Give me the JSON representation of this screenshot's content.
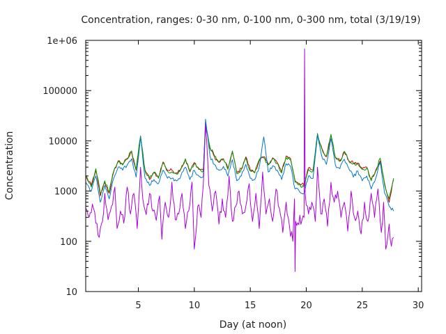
{
  "chart_data": {
    "type": "line",
    "title": "Concentration, ranges: 0-30 nm, 0-100 nm, 0-300 nm, total (3/19/19)",
    "xlabel": "Day (at noon)",
    "ylabel": "Concentration",
    "xlim": [
      0.3,
      30.3
    ],
    "ylim": [
      10,
      1000000
    ],
    "yscale": "log",
    "grid": false,
    "legend": "none",
    "x_ticks": [
      {
        "value": 5,
        "label": "5"
      },
      {
        "value": 10,
        "label": "10"
      },
      {
        "value": 15,
        "label": "15"
      },
      {
        "value": 20,
        "label": "20"
      },
      {
        "value": 25,
        "label": "25"
      },
      {
        "value": 30,
        "label": "30"
      }
    ],
    "y_ticks": [
      {
        "value": 10,
        "label": "10"
      },
      {
        "value": 100,
        "label": "100"
      },
      {
        "value": 1000,
        "label": "1000"
      },
      {
        "value": 10000,
        "label": "10000"
      },
      {
        "value": 100000,
        "label": "100000"
      },
      {
        "value": 1000000,
        "label": "1e+06"
      }
    ],
    "series": [
      {
        "color": "#cc0000",
        "points": [
          [
            0.3,
            1900
          ],
          [
            0.8,
            1300
          ],
          [
            1.2,
            2600
          ],
          [
            1.6,
            800
          ],
          [
            2.0,
            1500
          ],
          [
            2.4,
            900
          ],
          [
            2.8,
            2400
          ],
          [
            3.2,
            4000
          ],
          [
            3.6,
            3500
          ],
          [
            4.0,
            4300
          ],
          [
            4.4,
            5900
          ],
          [
            4.8,
            2600
          ],
          [
            5.2,
            12000
          ],
          [
            5.6,
            2600
          ],
          [
            6.0,
            1700
          ],
          [
            6.4,
            2300
          ],
          [
            6.8,
            1900
          ],
          [
            7.2,
            3800
          ],
          [
            7.6,
            2600
          ],
          [
            8.0,
            2600
          ],
          [
            8.4,
            2300
          ],
          [
            8.8,
            2800
          ],
          [
            9.2,
            4300
          ],
          [
            9.6,
            2400
          ],
          [
            10.0,
            3700
          ],
          [
            10.4,
            2800
          ],
          [
            10.8,
            2600
          ],
          [
            11.0,
            20000
          ],
          [
            11.4,
            7000
          ],
          [
            11.8,
            4800
          ],
          [
            12.2,
            3700
          ],
          [
            12.6,
            4400
          ],
          [
            13.0,
            2800
          ],
          [
            13.4,
            6000
          ],
          [
            13.8,
            2300
          ],
          [
            14.2,
            2800
          ],
          [
            14.6,
            4800
          ],
          [
            15.0,
            2600
          ],
          [
            15.4,
            2400
          ],
          [
            15.8,
            4000
          ],
          [
            16.2,
            4800
          ],
          [
            16.6,
            3400
          ],
          [
            17.0,
            4600
          ],
          [
            17.4,
            3700
          ],
          [
            17.8,
            2400
          ],
          [
            18.2,
            5000
          ],
          [
            18.6,
            4400
          ],
          [
            19.0,
            1600
          ],
          [
            19.8,
            1300
          ],
          [
            20.2,
            2900
          ],
          [
            20.6,
            2600
          ],
          [
            21.0,
            13000
          ],
          [
            21.4,
            7000
          ],
          [
            21.8,
            4800
          ],
          [
            22.2,
            13000
          ],
          [
            22.6,
            4700
          ],
          [
            23.0,
            4000
          ],
          [
            23.4,
            6000
          ],
          [
            23.8,
            4000
          ],
          [
            24.2,
            3600
          ],
          [
            24.6,
            3600
          ],
          [
            25.0,
            2800
          ],
          [
            25.4,
            3000
          ],
          [
            25.8,
            1700
          ],
          [
            26.2,
            2600
          ],
          [
            26.6,
            4000
          ],
          [
            27.0,
            1400
          ],
          [
            27.4,
            600
          ],
          [
            27.8,
            1700
          ]
        ]
      },
      {
        "color": "#009900",
        "points": [
          [
            0.3,
            2000
          ],
          [
            0.8,
            1200
          ],
          [
            1.2,
            2800
          ],
          [
            1.6,
            900
          ],
          [
            2.0,
            1600
          ],
          [
            2.4,
            950
          ],
          [
            2.8,
            2500
          ],
          [
            3.2,
            3800
          ],
          [
            3.6,
            3300
          ],
          [
            4.0,
            4500
          ],
          [
            4.4,
            6300
          ],
          [
            4.8,
            2700
          ],
          [
            5.2,
            12500
          ],
          [
            5.6,
            2500
          ],
          [
            6.0,
            1800
          ],
          [
            6.4,
            2400
          ],
          [
            6.8,
            1800
          ],
          [
            7.2,
            3600
          ],
          [
            7.6,
            2500
          ],
          [
            8.0,
            2400
          ],
          [
            8.4,
            2200
          ],
          [
            8.8,
            2700
          ],
          [
            9.2,
            4400
          ],
          [
            9.6,
            2500
          ],
          [
            10.0,
            3500
          ],
          [
            10.4,
            2700
          ],
          [
            10.8,
            2500
          ],
          [
            11.0,
            21000
          ],
          [
            11.4,
            7500
          ],
          [
            11.8,
            5000
          ],
          [
            12.2,
            3800
          ],
          [
            12.6,
            4300
          ],
          [
            13.0,
            2700
          ],
          [
            13.4,
            6300
          ],
          [
            13.8,
            2200
          ],
          [
            14.2,
            2700
          ],
          [
            14.6,
            4600
          ],
          [
            15.0,
            2500
          ],
          [
            15.4,
            2300
          ],
          [
            15.8,
            4200
          ],
          [
            16.2,
            4600
          ],
          [
            16.6,
            3300
          ],
          [
            17.0,
            4400
          ],
          [
            17.4,
            3600
          ],
          [
            17.8,
            2300
          ],
          [
            18.2,
            4700
          ],
          [
            18.6,
            4200
          ],
          [
            19.0,
            1500
          ],
          [
            19.8,
            1200
          ],
          [
            20.2,
            2700
          ],
          [
            20.6,
            2500
          ],
          [
            21.0,
            14000
          ],
          [
            21.4,
            6800
          ],
          [
            21.8,
            5000
          ],
          [
            22.2,
            13500
          ],
          [
            22.6,
            4600
          ],
          [
            23.0,
            3900
          ],
          [
            23.4,
            6200
          ],
          [
            23.8,
            3900
          ],
          [
            24.2,
            3500
          ],
          [
            24.6,
            3500
          ],
          [
            25.0,
            2700
          ],
          [
            25.4,
            2900
          ],
          [
            25.8,
            1600
          ],
          [
            26.2,
            2500
          ],
          [
            26.6,
            4500
          ],
          [
            27.0,
            1300
          ],
          [
            27.4,
            700
          ],
          [
            27.8,
            1800
          ]
        ]
      },
      {
        "color": "#0077cc",
        "points": [
          [
            0.3,
            1500
          ],
          [
            0.8,
            1000
          ],
          [
            1.2,
            2000
          ],
          [
            1.6,
            600
          ],
          [
            2.0,
            1300
          ],
          [
            2.4,
            700
          ],
          [
            2.8,
            1800
          ],
          [
            3.2,
            3000
          ],
          [
            3.6,
            2600
          ],
          [
            4.0,
            3300
          ],
          [
            4.4,
            4400
          ],
          [
            4.8,
            1900
          ],
          [
            5.2,
            12000
          ],
          [
            5.6,
            1800
          ],
          [
            6.0,
            1300
          ],
          [
            6.4,
            1700
          ],
          [
            6.8,
            1400
          ],
          [
            7.2,
            2600
          ],
          [
            7.6,
            1800
          ],
          [
            8.0,
            1800
          ],
          [
            8.4,
            1600
          ],
          [
            8.8,
            2000
          ],
          [
            9.2,
            3000
          ],
          [
            9.6,
            1700
          ],
          [
            10.0,
            2600
          ],
          [
            10.4,
            2000
          ],
          [
            10.8,
            1900
          ],
          [
            11.0,
            27000
          ],
          [
            11.4,
            5000
          ],
          [
            11.8,
            3400
          ],
          [
            12.2,
            2600
          ],
          [
            12.6,
            3100
          ],
          [
            13.0,
            2000
          ],
          [
            13.4,
            4200
          ],
          [
            13.8,
            1600
          ],
          [
            14.2,
            2000
          ],
          [
            14.6,
            3400
          ],
          [
            15.0,
            1800
          ],
          [
            15.4,
            1700
          ],
          [
            15.8,
            3000
          ],
          [
            16.2,
            12000
          ],
          [
            16.6,
            2400
          ],
          [
            17.0,
            3200
          ],
          [
            17.4,
            2600
          ],
          [
            17.8,
            1700
          ],
          [
            18.2,
            3500
          ],
          [
            18.6,
            3100
          ],
          [
            19.0,
            1100
          ],
          [
            19.8,
            900
          ],
          [
            20.2,
            2000
          ],
          [
            20.6,
            1800
          ],
          [
            21.0,
            13000
          ],
          [
            21.4,
            4800
          ],
          [
            21.8,
            3400
          ],
          [
            22.2,
            11000
          ],
          [
            22.6,
            3300
          ],
          [
            23.0,
            2800
          ],
          [
            23.4,
            4300
          ],
          [
            23.8,
            2800
          ],
          [
            24.2,
            1900
          ],
          [
            24.6,
            2500
          ],
          [
            25.0,
            1600
          ],
          [
            25.4,
            2000
          ],
          [
            25.8,
            1100
          ],
          [
            26.2,
            1800
          ],
          [
            26.6,
            3700
          ],
          [
            27.0,
            900
          ],
          [
            27.4,
            500
          ],
          [
            27.8,
            400
          ]
        ]
      },
      {
        "color": "#aa00dd",
        "points": [
          [
            0.3,
            450
          ],
          [
            0.6,
            300
          ],
          [
            0.9,
            550
          ],
          [
            1.2,
            230
          ],
          [
            1.5,
            120
          ],
          [
            1.8,
            250
          ],
          [
            2.0,
            900
          ],
          [
            2.3,
            270
          ],
          [
            2.6,
            500
          ],
          [
            2.9,
            1200
          ],
          [
            3.1,
            180
          ],
          [
            3.4,
            400
          ],
          [
            3.7,
            230
          ],
          [
            4.0,
            1200
          ],
          [
            4.3,
            350
          ],
          [
            4.6,
            900
          ],
          [
            4.9,
            180
          ],
          [
            5.2,
            3000
          ],
          [
            5.4,
            700
          ],
          [
            5.7,
            340
          ],
          [
            6.0,
            900
          ],
          [
            6.3,
            400
          ],
          [
            6.6,
            260
          ],
          [
            6.9,
            800
          ],
          [
            7.1,
            110
          ],
          [
            7.4,
            600
          ],
          [
            7.7,
            300
          ],
          [
            8.0,
            1500
          ],
          [
            8.3,
            270
          ],
          [
            8.6,
            350
          ],
          [
            8.9,
            900
          ],
          [
            9.2,
            180
          ],
          [
            9.5,
            400
          ],
          [
            9.8,
            1500
          ],
          [
            10.0,
            70
          ],
          [
            10.3,
            500
          ],
          [
            10.6,
            300
          ],
          [
            10.8,
            1300
          ],
          [
            11.0,
            22000
          ],
          [
            11.3,
            1300
          ],
          [
            11.6,
            400
          ],
          [
            11.9,
            1000
          ],
          [
            12.2,
            220
          ],
          [
            12.5,
            700
          ],
          [
            12.8,
            300
          ],
          [
            13.1,
            2000
          ],
          [
            13.4,
            250
          ],
          [
            13.7,
            500
          ],
          [
            14.0,
            1000
          ],
          [
            14.3,
            350
          ],
          [
            14.6,
            500
          ],
          [
            14.9,
            1400
          ],
          [
            15.2,
            250
          ],
          [
            15.5,
            900
          ],
          [
            15.8,
            180
          ],
          [
            16.1,
            2400
          ],
          [
            16.4,
            350
          ],
          [
            16.7,
            700
          ],
          [
            17.0,
            250
          ],
          [
            17.3,
            1100
          ],
          [
            17.6,
            450
          ],
          [
            17.9,
            150
          ],
          [
            18.2,
            600
          ],
          [
            18.5,
            200
          ],
          [
            18.8,
            100
          ],
          [
            18.95,
            700
          ],
          [
            19.0,
            25
          ],
          [
            19.05,
            250
          ],
          [
            19.8,
            300
          ],
          [
            19.85,
            680000
          ],
          [
            19.9,
            900
          ],
          [
            20.2,
            350
          ],
          [
            20.5,
            600
          ],
          [
            20.8,
            250
          ],
          [
            21.0,
            3000
          ],
          [
            21.3,
            350
          ],
          [
            21.6,
            700
          ],
          [
            21.9,
            200
          ],
          [
            22.2,
            1500
          ],
          [
            22.5,
            600
          ],
          [
            22.8,
            1000
          ],
          [
            23.1,
            300
          ],
          [
            23.4,
            600
          ],
          [
            23.7,
            160
          ],
          [
            24.0,
            1000
          ],
          [
            24.3,
            300
          ],
          [
            24.6,
            400
          ],
          [
            24.9,
            140
          ],
          [
            25.2,
            600
          ],
          [
            25.5,
            250
          ],
          [
            25.8,
            900
          ],
          [
            26.1,
            300
          ],
          [
            26.4,
            1100
          ],
          [
            26.7,
            150
          ],
          [
            26.9,
            600
          ],
          [
            27.1,
            70
          ],
          [
            27.4,
            220
          ],
          [
            27.6,
            80
          ],
          [
            27.8,
            120
          ]
        ]
      }
    ]
  }
}
